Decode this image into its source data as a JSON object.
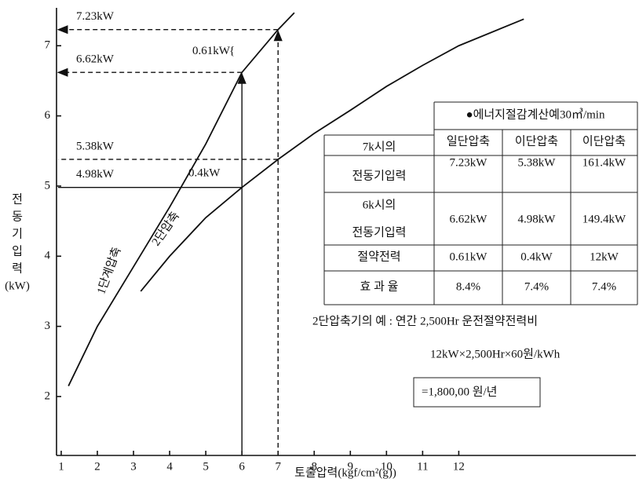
{
  "chart_data": {
    "type": "line",
    "x_label": "토출압력(kgf/cm²(g))",
    "y_label": [
      "전",
      "동",
      "기",
      "입",
      "력",
      "(kW)"
    ],
    "xlim": [
      0.87,
      16.9
    ],
    "ylim": [
      1.16,
      7.54
    ],
    "xticks": [
      1,
      2,
      3,
      4,
      5,
      6,
      7,
      8,
      9,
      10,
      11,
      12
    ],
    "yticks": [
      2,
      3,
      4,
      5,
      6,
      7
    ],
    "series": [
      {
        "name": "1단계압축",
        "color": "#111",
        "x": [
          1.2,
          2,
          3,
          4,
          5,
          6,
          7,
          7.45
        ],
        "values": [
          2.15,
          3.0,
          3.85,
          4.7,
          5.6,
          6.62,
          7.23,
          7.47
        ]
      },
      {
        "name": "2단압축",
        "color": "#111",
        "x": [
          3.2,
          4,
          5,
          6,
          7,
          8,
          9,
          10,
          11,
          12,
          13.8
        ],
        "values": [
          3.5,
          4.0,
          4.55,
          4.98,
          5.38,
          5.75,
          6.08,
          6.42,
          6.72,
          7.0,
          7.38
        ]
      }
    ],
    "guides": [
      {
        "x": 7,
        "y": 7.23,
        "label": "7.23kW"
      },
      {
        "x": 6,
        "y": 6.62,
        "label": "6.62kW"
      },
      {
        "x": 7,
        "y": 5.38,
        "label": "5.38kW"
      },
      {
        "x": 6,
        "y": 4.98,
        "label": "4.98kW"
      }
    ],
    "differences": [
      {
        "value": 0.61,
        "label": "0.61kW"
      },
      {
        "value": 0.4,
        "label": "0.4kW"
      }
    ],
    "table": {
      "title": "●에너지절감계산예30㎥/min",
      "columns": [
        "일단압축",
        "이단압축",
        "이단압축"
      ],
      "rows": [
        {
          "label": [
            "7k시의",
            "전동기입력"
          ],
          "cells": [
            "7.23kW",
            "5.38kW",
            "161.4kW"
          ]
        },
        {
          "label": [
            "6k시의",
            "전동기입력"
          ],
          "cells": [
            "6.62kW",
            "4.98kW",
            "149.4kW"
          ]
        },
        {
          "label": [
            "절약전력"
          ],
          "cells": [
            "0.61kW",
            "0.4kW",
            "12kW"
          ]
        },
        {
          "label": [
            "효 과 율"
          ],
          "cells": [
            "8.4%",
            "7.4%",
            "7.4%"
          ]
        }
      ]
    },
    "notes": [
      "2단압축기의 예 : 연간 2,500Hr 운전절약전력비",
      "12kW×2,500Hr×60원/kWh",
      "=1,800,00 원/년"
    ]
  }
}
